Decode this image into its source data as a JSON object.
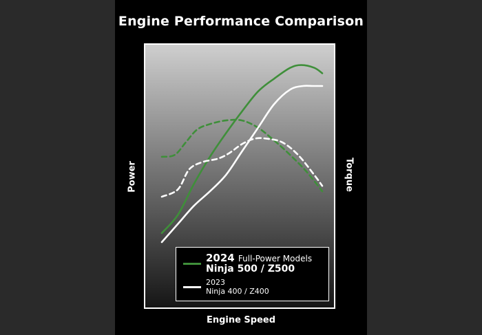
{
  "chart_data": {
    "type": "line",
    "title": "Engine Performance Comparison",
    "xlabel": "Engine Speed",
    "ylabel_left": "Power",
    "ylabel_right": "Torque",
    "xlim": [
      0,
      100
    ],
    "ylim": [
      0,
      100
    ],
    "colors": {
      "model_2024": "#3f8f3a",
      "model_2023": "#ffffff"
    },
    "series": [
      {
        "name_year": "2024",
        "name_sub": "Full-Power Models",
        "name_model": "Ninja 500 / Z500",
        "metric": "power",
        "style": "solid",
        "color": "#3f8f3a",
        "x": [
          0,
          10,
          20,
          30,
          40,
          50,
          60,
          70,
          80,
          87,
          95,
          100
        ],
        "y": [
          5,
          15,
          32,
          47,
          60,
          72,
          83,
          90,
          96,
          97.5,
          96,
          93
        ]
      },
      {
        "metric": "torque",
        "style": "dashed",
        "color": "#3f8f3a",
        "x": [
          0,
          8,
          15,
          22,
          30,
          40,
          50,
          60,
          70,
          80,
          90,
          100
        ],
        "y": [
          47,
          48,
          55,
          62,
          65,
          67,
          67,
          63,
          56,
          48,
          39,
          28
        ]
      },
      {
        "name_year": "2023",
        "name_model": "Ninja 400 / Z400",
        "metric": "power",
        "style": "solid",
        "color": "#ffffff",
        "x": [
          0,
          10,
          20,
          30,
          40,
          50,
          60,
          70,
          80,
          88,
          94,
          100
        ],
        "y": [
          0,
          10,
          20,
          28,
          37,
          50,
          63,
          76,
          84,
          86,
          86,
          86
        ]
      },
      {
        "metric": "torque",
        "style": "dashed",
        "color": "#ffffff",
        "x": [
          0,
          10,
          17,
          25,
          35,
          42,
          50,
          58,
          65,
          75,
          85,
          95,
          100
        ],
        "y": [
          25,
          29,
          40,
          44,
          46,
          49,
          54,
          57,
          57,
          55,
          48,
          37,
          31
        ]
      }
    ],
    "legend_placement": "bottom-right",
    "grid": false
  }
}
